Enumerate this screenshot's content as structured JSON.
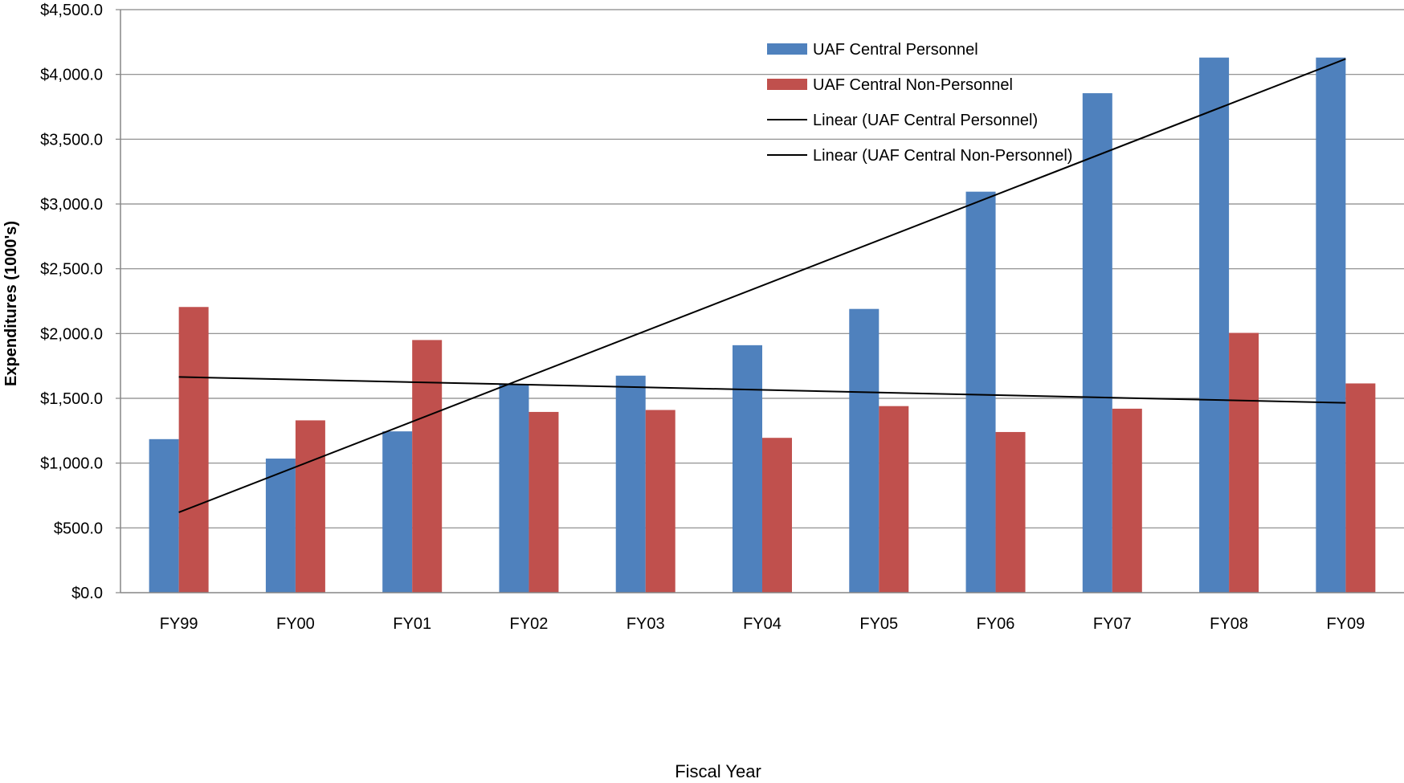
{
  "chart_data": {
    "type": "bar",
    "xlabel": "Fiscal Year",
    "ylabel": "Expenditures (1000's)",
    "categories": [
      "FY99",
      "FY00",
      "FY01",
      "FY02",
      "FY03",
      "FY04",
      "FY05",
      "FY06",
      "FY07",
      "FY08",
      "FY09"
    ],
    "ylim": [
      0,
      4500
    ],
    "yticks": [
      0,
      500,
      1000,
      1500,
      2000,
      2500,
      3000,
      3500,
      4000,
      4500
    ],
    "ytick_labels": [
      "$0.0",
      "$500.0",
      "$1,000.0",
      "$1,500.0",
      "$2,000.0",
      "$2,500.0",
      "$3,000.0",
      "$3,500.0",
      "$4,000.0",
      "$4,500.0"
    ],
    "grid": true,
    "legend_position": "top-right",
    "series": [
      {
        "name": "UAF Central Personnel",
        "color": "#4F81BD",
        "values": [
          1185,
          1035,
          1245,
          1610,
          1675,
          1910,
          2190,
          3095,
          3855,
          4130,
          4130
        ]
      },
      {
        "name": "UAF Central Non-Personnel",
        "color": "#C0504D",
        "values": [
          2205,
          1330,
          1950,
          1395,
          1410,
          1195,
          1440,
          1240,
          1420,
          2005,
          1615
        ]
      }
    ],
    "trendlines": [
      {
        "name": "Linear (UAF Central Personnel)",
        "type": "linear",
        "color": "#000000",
        "start": 620,
        "end": 4120
      },
      {
        "name": "Linear (UAF Central Non-Personnel)",
        "type": "linear",
        "color": "#000000",
        "start": 1665,
        "end": 1465
      }
    ]
  }
}
